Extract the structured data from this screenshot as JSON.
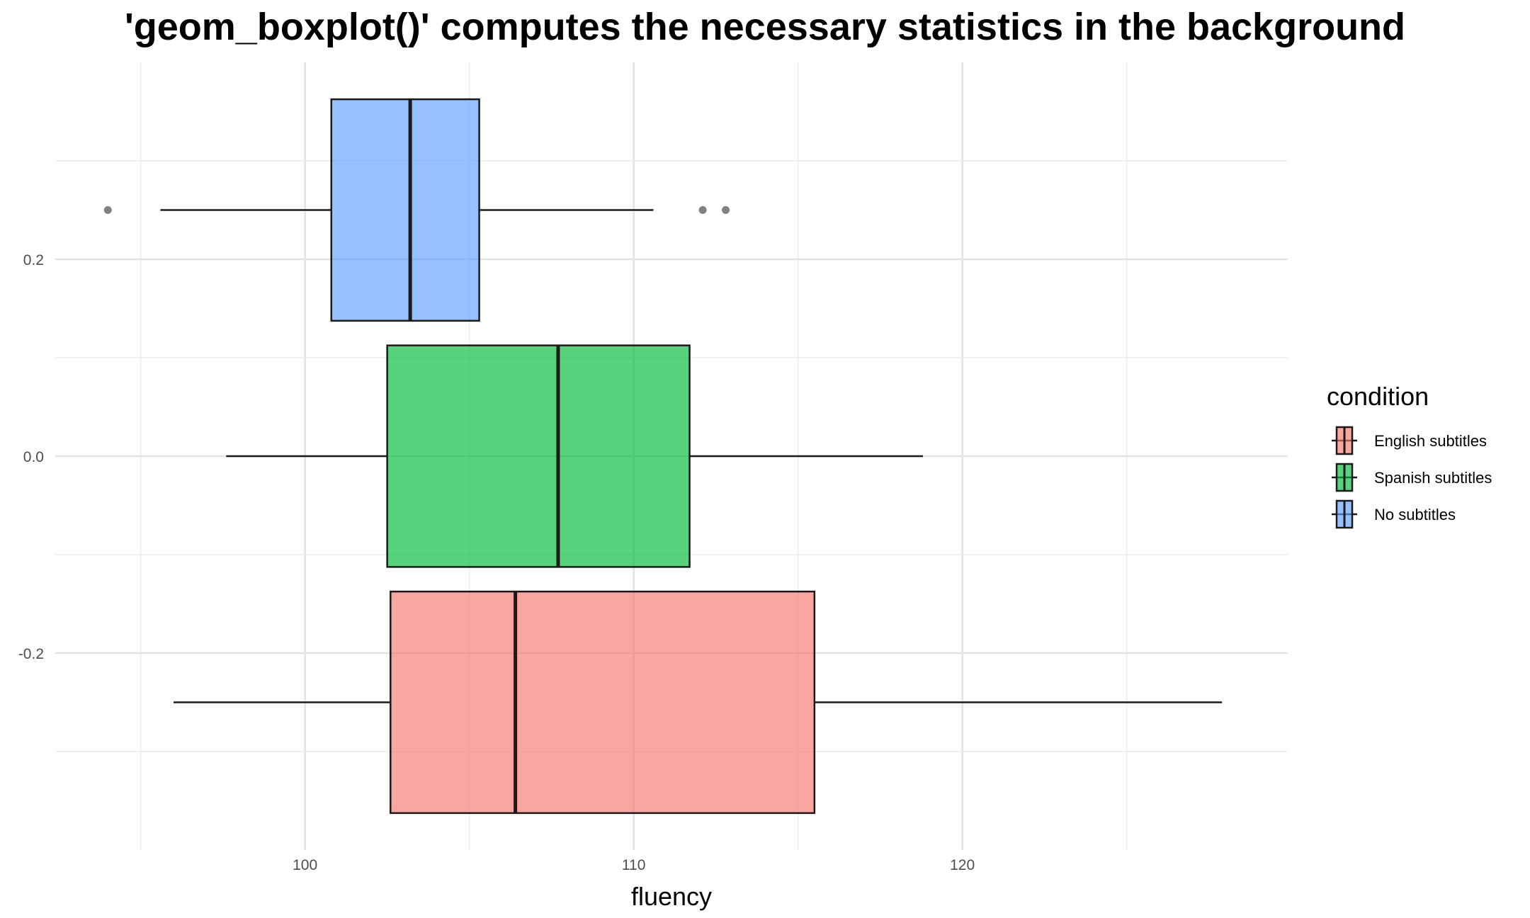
{
  "chart_data": {
    "type": "boxplot",
    "orientation": "horizontal",
    "title": "'geom_boxplot()' computes the necessary statistics in the background",
    "xlabel": "fluency",
    "ylabel": "",
    "xlim": [
      92.4,
      129.9
    ],
    "ylim": [
      -0.4,
      0.4
    ],
    "x_ticks": [
      100,
      110,
      120
    ],
    "x_tick_labels": [
      "100",
      "110",
      "120"
    ],
    "y_ticks": [
      -0.2,
      0.0,
      0.2
    ],
    "y_tick_labels": [
      "-0.2",
      "0.0",
      "0.2"
    ],
    "grid": true,
    "legend": {
      "title": "condition",
      "placement": "right",
      "items": [
        {
          "label": "English subtitles",
          "color": "#f8766d"
        },
        {
          "label": "Spanish subtitles",
          "color": "#00ba38"
        },
        {
          "label": "No subtitles",
          "color": "#619cff"
        }
      ]
    },
    "series": [
      {
        "name": "English subtitles",
        "color": "#f8766d",
        "y": -0.25,
        "half_height": 0.1125,
        "whisker_low": 96.0,
        "q1": 102.6,
        "median": 106.4,
        "q3": 115.5,
        "whisker_high": 127.9,
        "outliers": []
      },
      {
        "name": "Spanish subtitles",
        "color": "#00ba38",
        "y": 0.0,
        "half_height": 0.1125,
        "whisker_low": 97.6,
        "q1": 102.5,
        "median": 107.7,
        "q3": 111.7,
        "whisker_high": 118.8,
        "outliers": []
      },
      {
        "name": "No subtitles",
        "color": "#619cff",
        "y": 0.25,
        "half_height": 0.1125,
        "whisker_low": 95.6,
        "q1": 100.8,
        "median": 103.2,
        "q3": 105.3,
        "whisker_high": 110.6,
        "outliers": [
          94.0,
          112.1,
          112.8
        ]
      }
    ]
  }
}
